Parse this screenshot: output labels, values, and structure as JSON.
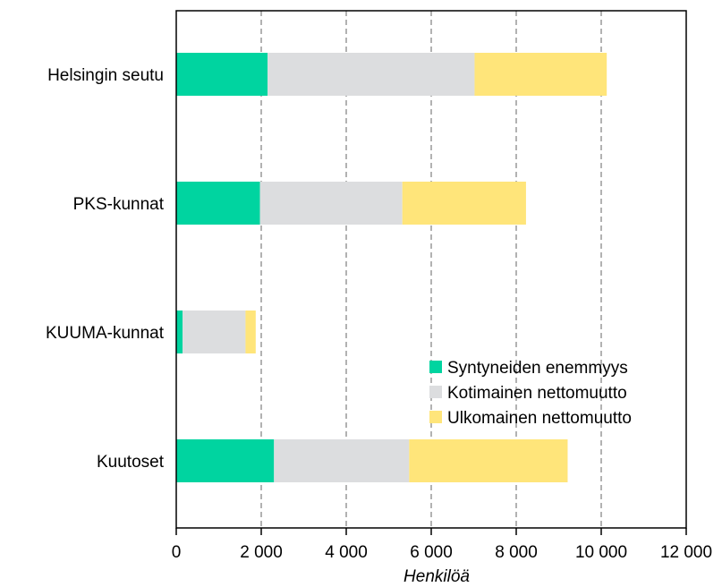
{
  "chart_data": {
    "type": "bar",
    "orientation": "horizontal",
    "stacked": true,
    "categories": [
      "Helsingin seutu",
      "PKS-kunnat",
      "KUUMA-kunnat",
      "Kuutoset"
    ],
    "series": [
      {
        "name": "Syntyneiden enemmyys",
        "color": "#00d4a0",
        "values": [
          2150,
          1970,
          150,
          2300
        ]
      },
      {
        "name": "Kotimainen nettomuutto",
        "color": "#dcdddf",
        "values": [
          4870,
          3350,
          1480,
          3180
        ]
      },
      {
        "name": "Ulkomainen nettomuutto",
        "color": "#ffe57a",
        "values": [
          3110,
          2910,
          240,
          3730
        ]
      }
    ],
    "xlim": [
      0,
      12000
    ],
    "xticks": [
      0,
      2000,
      4000,
      6000,
      8000,
      10000,
      12000
    ],
    "xtick_labels": [
      "0",
      "2 000",
      "4 000",
      "6 000",
      "8 000",
      "10 000",
      "12 000"
    ],
    "xlabel": "Henkilöä",
    "grid": {
      "x": true,
      "style": "dashed"
    },
    "legend_position": "lower-right"
  }
}
